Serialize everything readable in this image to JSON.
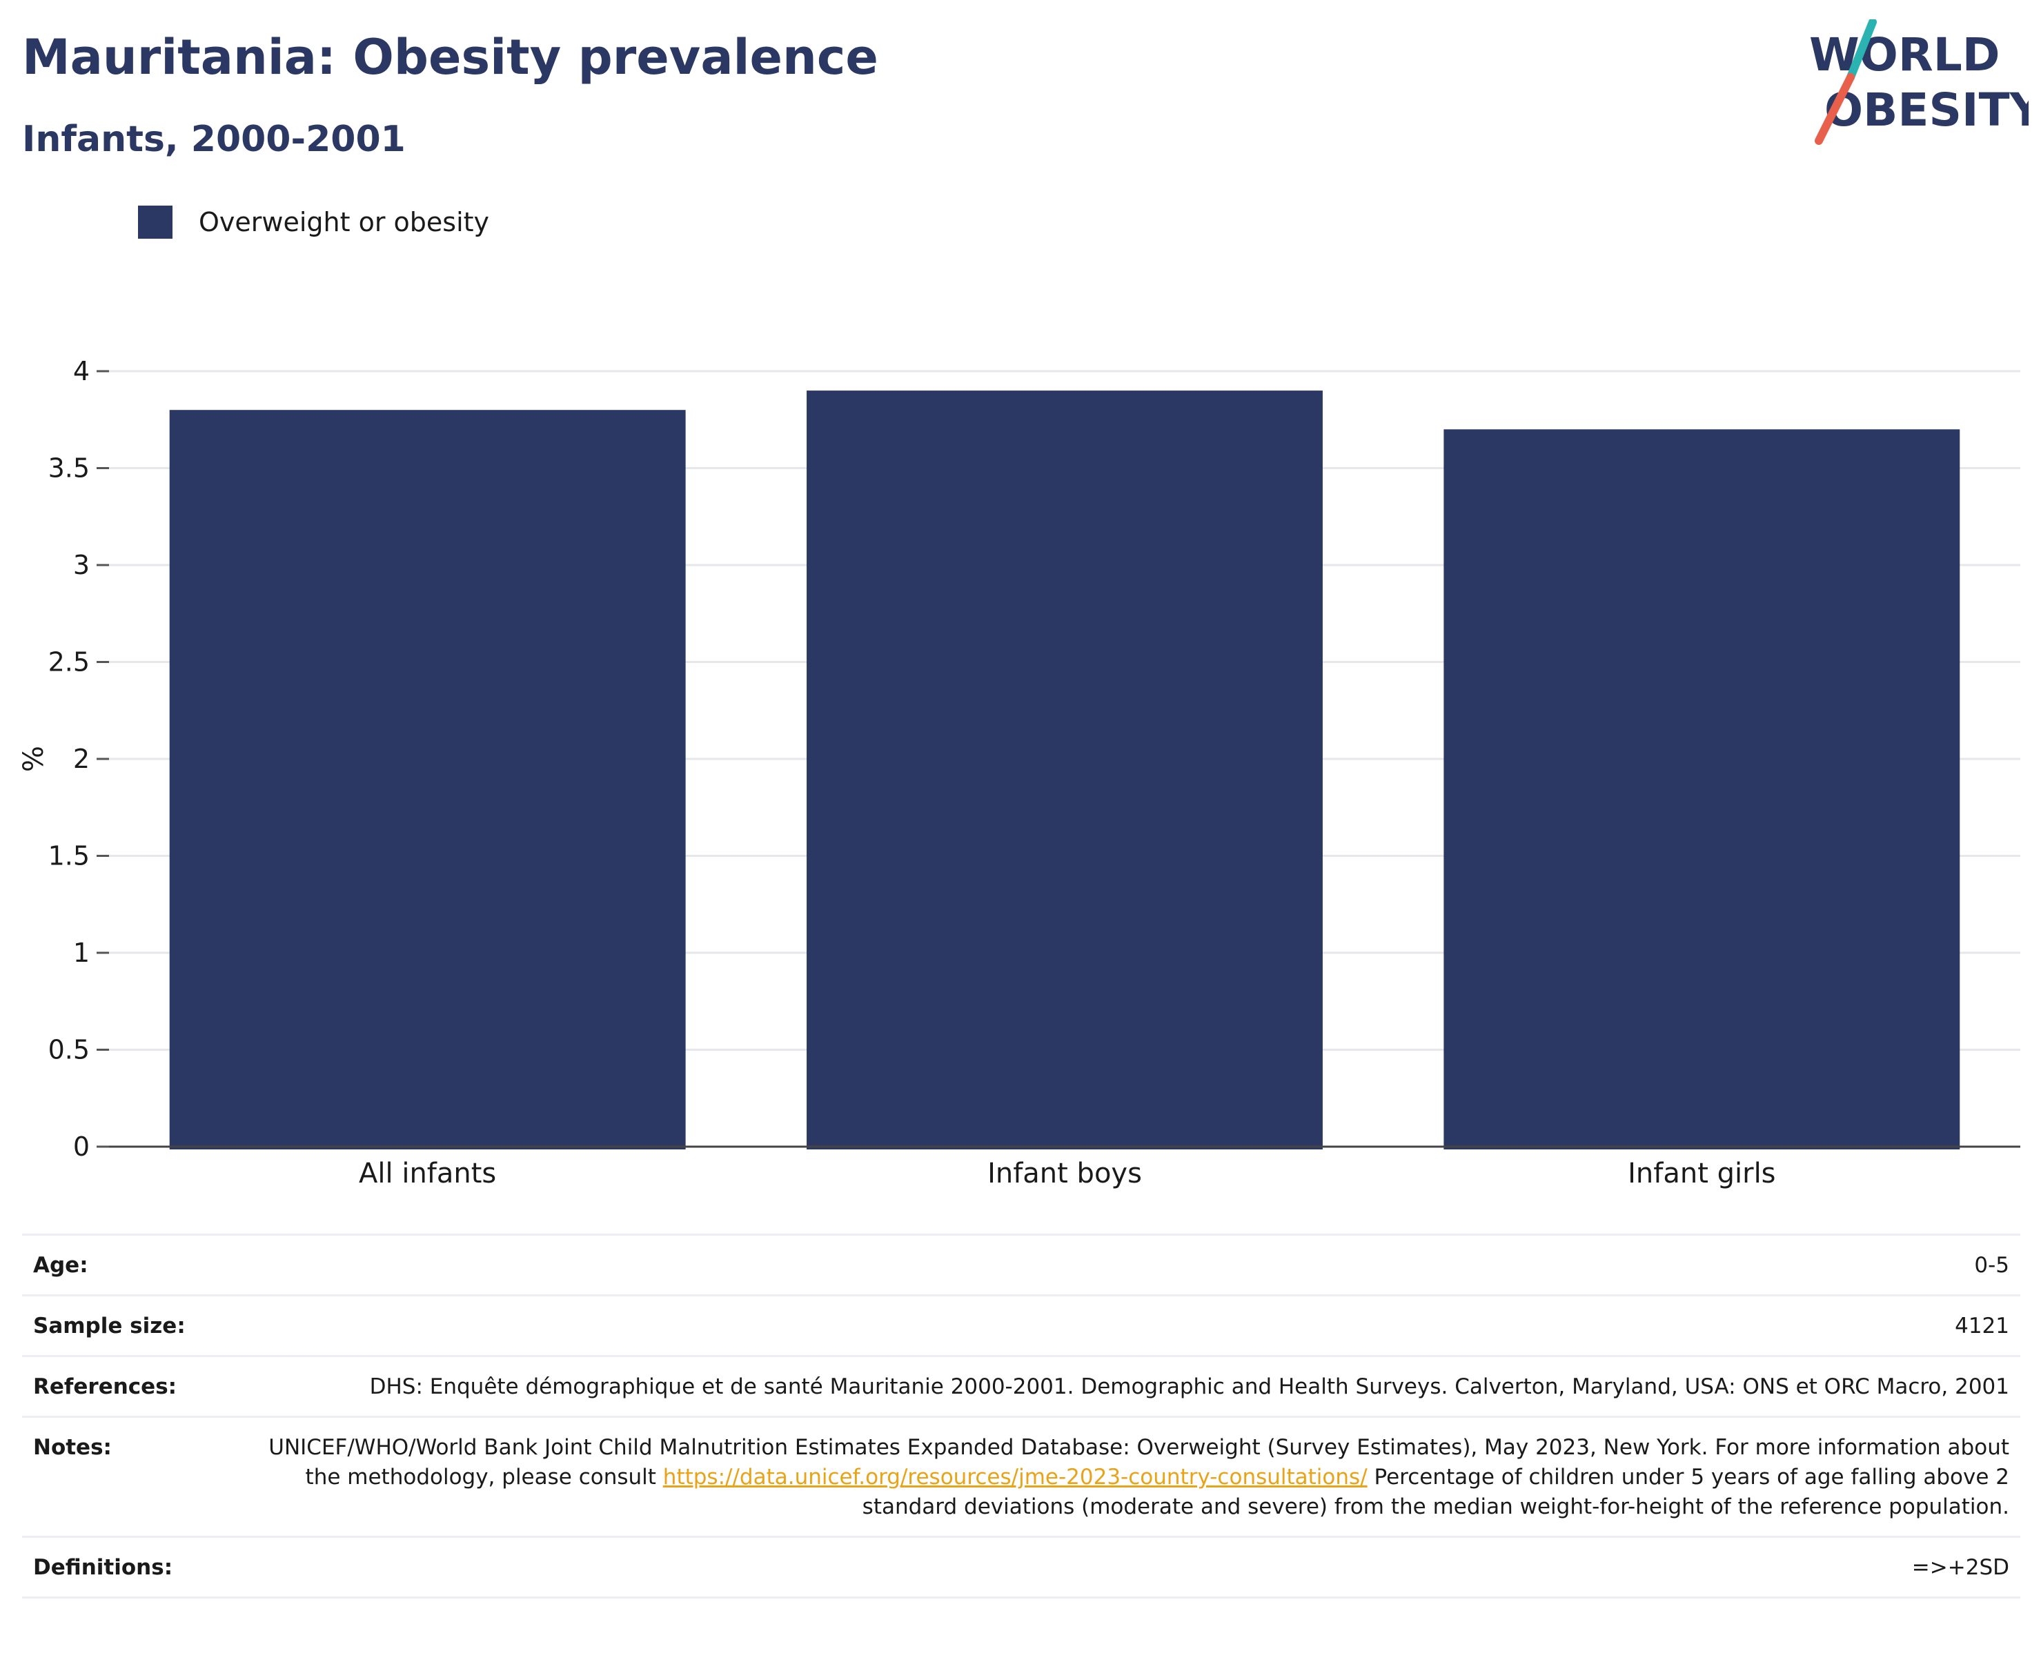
{
  "header": {
    "title": "Mauritania: Obesity prevalence",
    "subtitle": "Infants, 2000-2001"
  },
  "logo": {
    "line1": "WORLD",
    "line2": "OBESITY",
    "slash_colors": [
      "#2ab3b1",
      "#e8604c"
    ]
  },
  "colors": {
    "bar": "#2b3863",
    "title": "#2b3863",
    "link": "#e8a317"
  },
  "chart_data": {
    "type": "bar",
    "categories": [
      "All infants",
      "Infant boys",
      "Infant girls"
    ],
    "series": [
      {
        "name": "Overweight or obesity",
        "values": [
          3.8,
          3.9,
          3.7
        ]
      }
    ],
    "ylabel": "%",
    "ylim": [
      0,
      4
    ],
    "yticks": [
      0,
      0.5,
      1,
      1.5,
      2,
      2.5,
      3,
      3.5,
      4
    ],
    "grid": true,
    "legend": "top-left"
  },
  "info": {
    "rows": [
      {
        "key": "Age:",
        "value": "0-5"
      },
      {
        "key": "Sample size:",
        "value": "4121"
      },
      {
        "key": "References:",
        "value": "DHS: Enquête démographique et de santé Mauritanie 2000-2001. Demographic and Health Surveys. Calverton, Maryland, USA: ONS et ORC Macro, 2001"
      },
      {
        "key": "Notes:",
        "value_before": "UNICEF/WHO/World Bank Joint Child Malnutrition Estimates Expanded Database: Overweight (Survey Estimates), May 2023, New York. For more information about the methodology, please consult ",
        "link": "https://data.unicef.org/resources/jme-2023-country-consultations/",
        "value_after": " Percentage of children under 5 years of age falling above 2 standard deviations (moderate and severe) from the median weight-for-height of the reference population."
      },
      {
        "key": "Definitions:",
        "value": "=>+2SD"
      }
    ]
  }
}
